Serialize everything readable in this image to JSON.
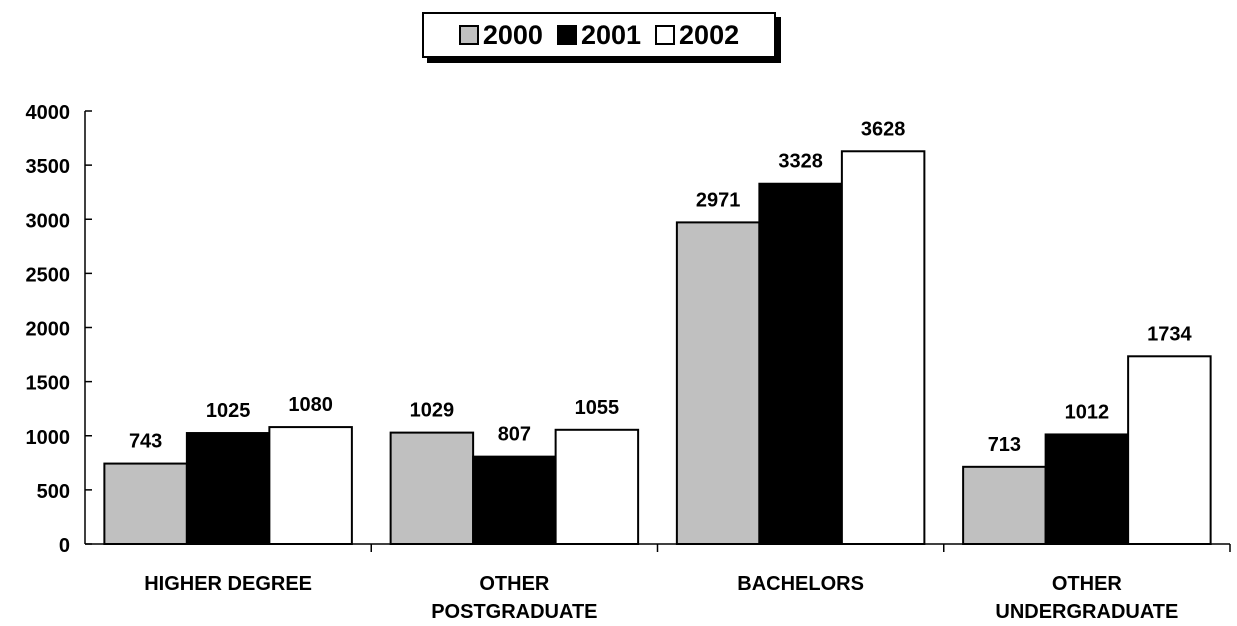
{
  "chart_data": {
    "type": "bar",
    "categories": [
      [
        "HIGHER DEGREE"
      ],
      [
        "OTHER",
        "POSTGRADUATE"
      ],
      [
        "BACHELORS"
      ],
      [
        "OTHER",
        "UNDERGRADUATE"
      ]
    ],
    "series": [
      {
        "name": "2000",
        "color": "#c0c0c0",
        "values": [
          743,
          1029,
          2971,
          713
        ]
      },
      {
        "name": "2001",
        "color": "#000000",
        "values": [
          1025,
          807,
          3328,
          1012
        ]
      },
      {
        "name": "2002",
        "color": "#ffffff",
        "values": [
          1080,
          1055,
          3628,
          1734
        ]
      }
    ],
    "yticks": [
      "0",
      "500",
      "1000",
      "1500",
      "2000",
      "2500",
      "3000",
      "3500",
      "4000"
    ],
    "ylim": [
      0,
      4000
    ],
    "legend_position": "top-center",
    "grid": false
  }
}
